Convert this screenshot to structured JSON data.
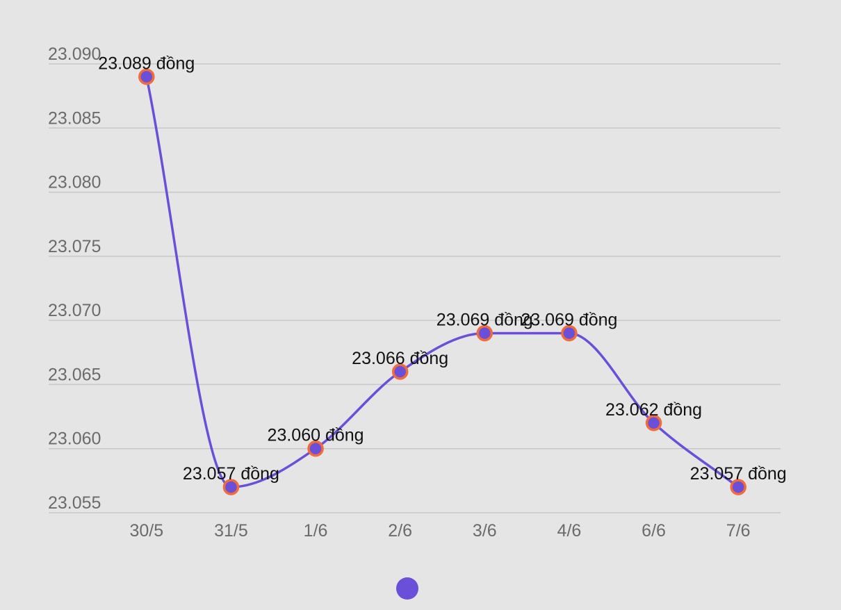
{
  "chart_data": {
    "type": "line",
    "categories": [
      "30/5",
      "31/5",
      "1/6",
      "2/6",
      "3/6",
      "4/6",
      "6/6",
      "7/6"
    ],
    "series": [
      {
        "values": [
          23.089,
          23.057,
          23.06,
          23.066,
          23.069,
          23.069,
          23.062,
          23.057
        ],
        "data_labels": [
          "23.089 đồng",
          "23.057 đồng",
          "23.060 đồng",
          "23.066 đồng",
          "23.069 đồng",
          "23.069 đồng",
          "23.062 đồng",
          "23.057 đồng"
        ],
        "color": "#6a4fd8",
        "marker_border_color": "#f26b3a"
      }
    ],
    "y_ticks": [
      "23.055",
      "23.060",
      "23.065",
      "23.070",
      "23.075",
      "23.080",
      "23.085",
      "23.090"
    ],
    "ylim": [
      23.055,
      23.09
    ],
    "title": "",
    "xlabel": "",
    "ylabel": "",
    "grid": true,
    "legend": "bottom-center"
  }
}
